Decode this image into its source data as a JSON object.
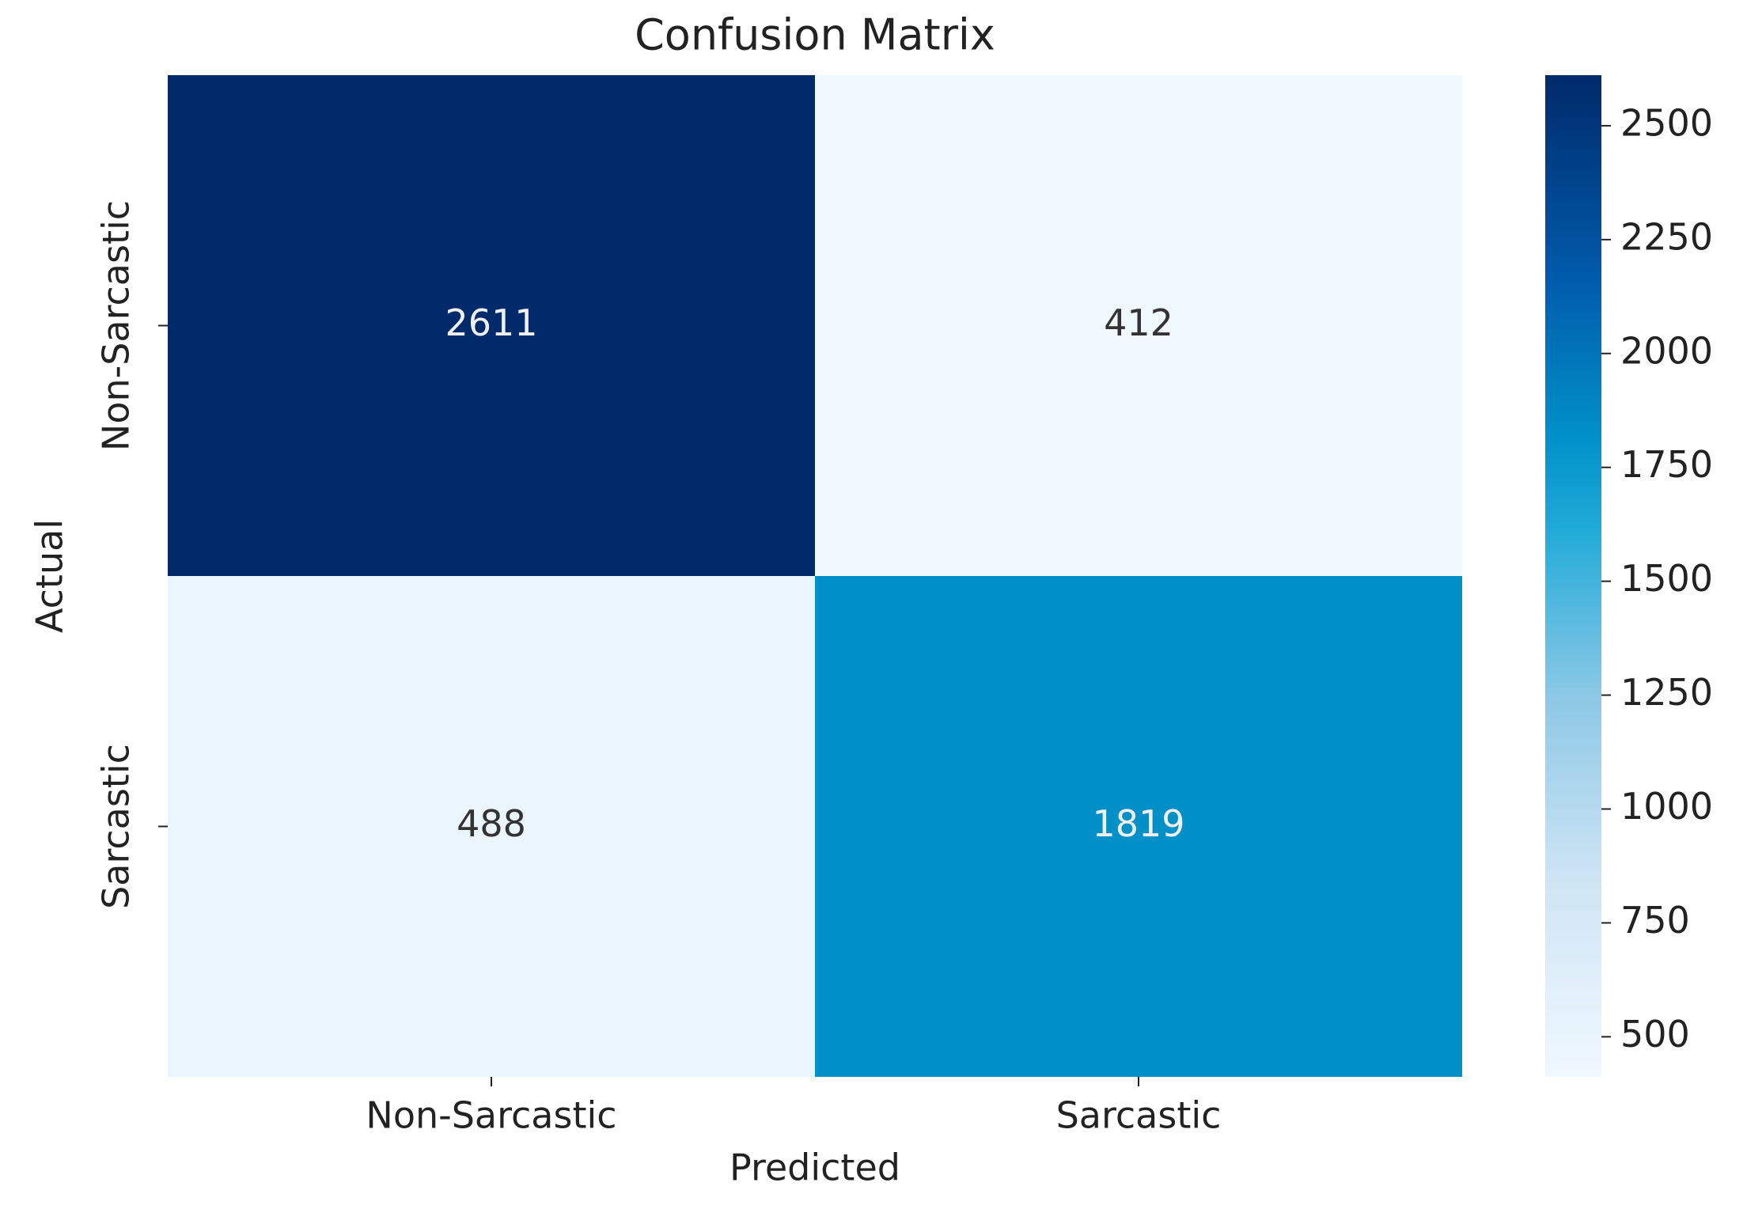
{
  "chart_data": {
    "type": "heatmap",
    "title": "Confusion Matrix",
    "x_label": "Predicted",
    "y_label": "Actual",
    "x_categories": [
      "Non-Sarcastic",
      "Sarcastic"
    ],
    "y_categories": [
      "Non-Sarcastic",
      "Sarcastic"
    ],
    "values": [
      [
        2611,
        412
      ],
      [
        488,
        1819
      ]
    ],
    "colormap": "Blues",
    "colorbar_lim": [
      412,
      2611
    ],
    "colorbar_ticks": [
      500,
      750,
      1000,
      1250,
      1500,
      1750,
      2000,
      2250,
      2500
    ]
  }
}
